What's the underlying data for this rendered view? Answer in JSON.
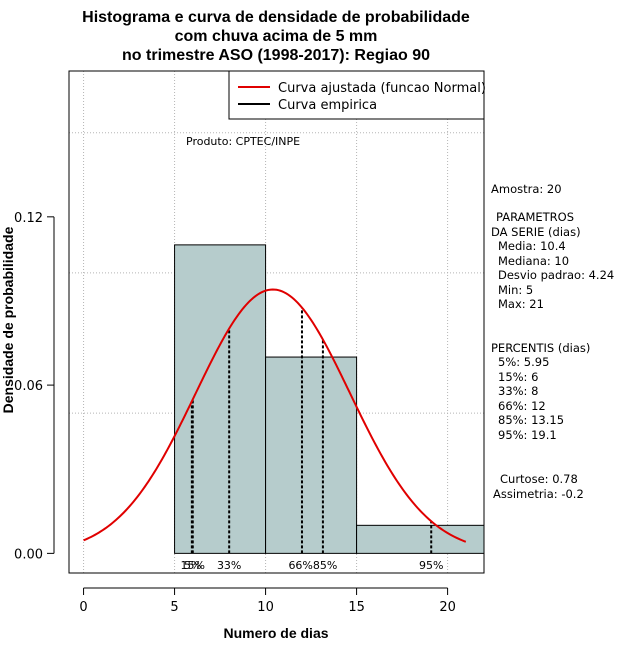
{
  "chart_data": {
    "type": "bar",
    "title_lines": [
      "Histograma e curva de densidade de probabilidade",
      "com chuva acima de 5 mm",
      "no trimestre ASO (1998-2017): Regiao 90"
    ],
    "xlabel": "Numero de dias",
    "ylabel": "Densidade de probabilidade",
    "xlim": [
      -0.8,
      22
    ],
    "ylim": [
      -0.007,
      0.172
    ],
    "xticks": [
      0,
      5,
      10,
      15,
      20
    ],
    "yticks": [
      0.0,
      0.06,
      0.12
    ],
    "ytick_labels": [
      "0.00",
      "0.06",
      "0.12"
    ],
    "xgrid": [
      0,
      5,
      10,
      15,
      20
    ],
    "ygrid": [
      0.05,
      0.1,
      0.15
    ],
    "grid": true,
    "bins": [
      {
        "x0": 5,
        "x1": 10,
        "density": 0.11
      },
      {
        "x0": 10,
        "x1": 15,
        "density": 0.07
      },
      {
        "x0": 15,
        "x1": 22,
        "density": 0.01
      }
    ],
    "bar_color": "#b6cccc",
    "curve": {
      "name": "Curva ajustada (funcao Normal)",
      "color": "#e00000",
      "mean": 10.4,
      "sd": 4.24,
      "x_from": 0,
      "x_to": 21
    },
    "empirical_name": "Curva empirica",
    "empirical_color": "#000000",
    "percentiles": [
      {
        "label": "5%",
        "value": 5.95
      },
      {
        "label": "15%",
        "value": 6
      },
      {
        "label": "33%",
        "value": 8
      },
      {
        "label": "66%",
        "value": 12
      },
      {
        "label": "85%",
        "value": 13.15
      },
      {
        "label": "95%",
        "value": 19.1
      }
    ],
    "percentile_labels": [
      {
        "text": "15%",
        "x": 6
      },
      {
        "text": "5%",
        "x": 6
      },
      {
        "text": "33%",
        "x": 8
      },
      {
        "text": "66%85%",
        "x": 12.6
      },
      {
        "text": "95%",
        "x": 19.1
      }
    ],
    "legend": {
      "placement": "top-right"
    },
    "product_note": "Produto: CPTEC/INPE"
  },
  "stats_panel": [
    "Amostra: 20",
    "PARAMETROS",
    "DA SERIE (dias)",
    "Media: 10.4",
    "Mediana: 10",
    "Desvio padrao: 4.24",
    "Min: 5",
    "Max: 21",
    "PERCENTIS (dias)",
    "5%: 5.95",
    "15%: 6",
    "33%: 8",
    "66%: 12",
    "85%: 13.15",
    "95%: 19.1",
    "Curtose: 0.78",
    "Assimetria: -0.2"
  ]
}
